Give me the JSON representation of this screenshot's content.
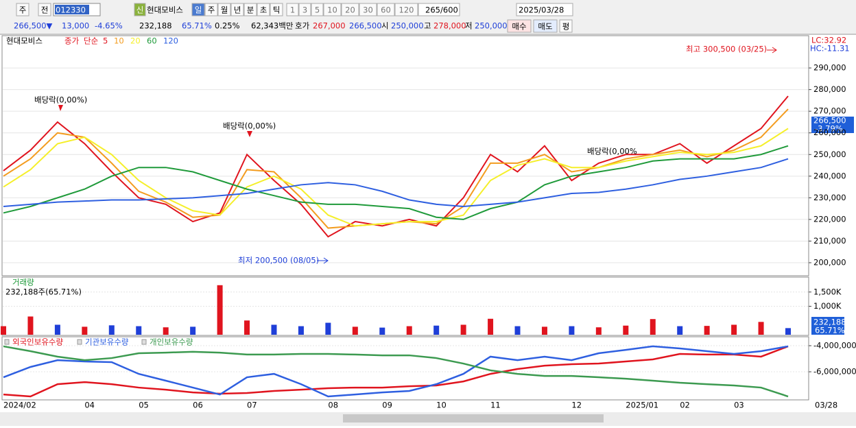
{
  "toolbar": {
    "items": [
      "주",
      "전"
    ],
    "code": "012330",
    "name": "현대모비스",
    "new_badge": "신",
    "periods": [
      "일",
      "주",
      "월",
      "년",
      "분",
      "초",
      "틱"
    ],
    "intervals": [
      "1",
      "3",
      "5",
      "10",
      "20",
      "30",
      "60",
      "120"
    ],
    "count": "265",
    "count_total": "/600",
    "date": "2025/03/28"
  },
  "info_bar": {
    "price": "266,500▼",
    "change": "13,000",
    "change_pct": "-4.65%",
    "volume": "232,188",
    "volume_ratio": "65.71%",
    "turnover": "0.25%",
    "amount": "62,343백만",
    "quote_label": "호가",
    "ask": "267,000",
    "bid": "266,500",
    "open_label": "시",
    "open": "250,000",
    "high_label": "고",
    "high": "278,000",
    "low_label": "저",
    "low": "250,000",
    "buy": "매수",
    "sell": "매도",
    "avg": "평"
  },
  "price_tag": {
    "price": "266,500",
    "change": "-3.79%",
    "lc": "LC:32.92",
    "hc": "HC:-11.31"
  },
  "legend_prefix": {
    "stock": "현대모비스",
    "field": "종가",
    "method": "단순"
  },
  "chart_data": [
    {
      "type": "line",
      "ylim": [
        194300,
        304600
      ],
      "categories": [
        "2024/02",
        null,
        null,
        "04",
        null,
        "05",
        null,
        "06",
        null,
        "07",
        null,
        null,
        "08",
        null,
        "09",
        null,
        "10",
        null,
        "11",
        null,
        null,
        "12",
        null,
        "2025/01",
        null,
        "02",
        null,
        "03",
        null,
        "03/28"
      ],
      "yticks": [
        {
          "value": 200000,
          "label": "200,000"
        },
        {
          "value": 210000,
          "label": "210,000"
        },
        {
          "value": 220000,
          "label": "220,000"
        },
        {
          "value": 230000,
          "label": "230,000"
        },
        {
          "value": 240000,
          "label": "240,000"
        },
        {
          "value": 250000,
          "label": "250,000"
        },
        {
          "value": 260000,
          "label": "260,000"
        },
        {
          "value": 270000,
          "label": "270,000"
        },
        {
          "value": 280000,
          "label": "280,000"
        },
        {
          "value": 290000,
          "label": "290,000"
        }
      ],
      "grid": true,
      "annotations": [
        "배당락(0,00%)",
        "배당락(0,00%)",
        "배당락(0,00%",
        "최고 300,500 (03/25)",
        "최저 200,500 (08/05)"
      ],
      "series": [
        {
          "name": "5",
          "color": "#e0141e",
          "values": [
            242500,
            252000,
            265000,
            255000,
            242000,
            230000,
            227000,
            219000,
            223000,
            250000,
            238000,
            227000,
            212000,
            219000,
            217000,
            220000,
            217000,
            230000,
            250000,
            242000,
            254000,
            238000,
            246000,
            250000,
            250000,
            255000,
            246000,
            254000,
            262000,
            277000
          ]
        },
        {
          "name": "10",
          "color": "#f39c1f",
          "values": [
            240000,
            248000,
            260000,
            258000,
            246000,
            233000,
            228000,
            221000,
            222000,
            243000,
            242000,
            230000,
            216000,
            217000,
            218000,
            219000,
            218000,
            226000,
            246000,
            246000,
            250000,
            242000,
            244000,
            248000,
            250000,
            252000,
            249000,
            252000,
            258000,
            271000
          ]
        },
        {
          "name": "20",
          "color": "#f5ef2a",
          "values": [
            235000,
            243000,
            255000,
            258000,
            250000,
            238000,
            230000,
            224000,
            222000,
            235000,
            240000,
            234000,
            222000,
            217000,
            218000,
            219000,
            219000,
            222000,
            238000,
            245000,
            248000,
            244000,
            244000,
            247000,
            249000,
            251000,
            250000,
            251000,
            254000,
            262000
          ]
        },
        {
          "name": "60",
          "color": "#1f9a3a",
          "values": [
            223000,
            226000,
            230000,
            234000,
            240000,
            244000,
            244000,
            242000,
            238000,
            234000,
            231000,
            228000,
            227000,
            227000,
            226000,
            225000,
            221000,
            220000,
            225000,
            228000,
            236000,
            240000,
            242000,
            244000,
            247000,
            248000,
            248000,
            248000,
            250000,
            254000
          ]
        },
        {
          "name": "120",
          "color": "#2e5fe0",
          "values": [
            226000,
            227000,
            228000,
            228500,
            229000,
            229000,
            229500,
            230000,
            231000,
            232000,
            234000,
            236000,
            237000,
            236000,
            233000,
            229000,
            227000,
            226000,
            227000,
            228000,
            230000,
            232000,
            232500,
            234000,
            236000,
            238500,
            240000,
            242000,
            244000,
            248000
          ]
        }
      ]
    },
    {
      "type": "bar",
      "title": "거래량",
      "subtitle": "232,188주(65.71%)",
      "ylim": [
        0,
        2000000
      ],
      "yticks": [
        {
          "value": 1000000,
          "label": "1,000K"
        },
        {
          "value": 1500000,
          "label": "1,500K"
        }
      ],
      "last_label": "232,188",
      "last_pct": "65.71%",
      "values": [
        300000,
        640000,
        350000,
        280000,
        330000,
        300000,
        260000,
        280000,
        1740000,
        500000,
        350000,
        300000,
        420000,
        280000,
        250000,
        300000,
        320000,
        350000,
        560000,
        300000,
        280000,
        300000,
        260000,
        320000,
        550000,
        300000,
        310000,
        350000,
        450000,
        232188
      ],
      "colors": [
        "#e0141e",
        "#e0141e",
        "#1f3fd8",
        "#e0141e",
        "#1f3fd8",
        "#1f3fd8",
        "#e0141e",
        "#1f3fd8",
        "#e0141e",
        "#e0141e",
        "#1f3fd8",
        "#1f3fd8",
        "#1f3fd8",
        "#e0141e",
        "#1f3fd8",
        "#e0141e",
        "#1f3fd8",
        "#e0141e",
        "#e0141e",
        "#1f3fd8",
        "#e0141e",
        "#1f3fd8",
        "#e0141e",
        "#e0141e",
        "#e0141e",
        "#1f3fd8",
        "#e0141e",
        "#e0141e",
        "#e0141e",
        "#1f3fd8"
      ]
    },
    {
      "type": "line",
      "ylim": [
        -8100000,
        -3370000
      ],
      "yticks": [
        {
          "value": -6000000,
          "label": "-6,000,000"
        },
        {
          "value": -4000000,
          "label": "-4,000,000"
        }
      ],
      "series": [
        {
          "name": "외국인보유수량",
          "color": "#e0141e",
          "values": [
            -7740000,
            -7890000,
            -6950000,
            -6790000,
            -6950000,
            -7210000,
            -7370000,
            -7580000,
            -7680000,
            -7630000,
            -7470000,
            -7370000,
            -7260000,
            -7210000,
            -7210000,
            -7110000,
            -7050000,
            -6740000,
            -6160000,
            -5790000,
            -5530000,
            -5420000,
            -5370000,
            -5210000,
            -5050000,
            -4630000,
            -4680000,
            -4680000,
            -4840000,
            -4050000
          ]
        },
        {
          "name": "기관보유수량",
          "color": "#2e5fe0",
          "values": [
            -6420000,
            -5630000,
            -5110000,
            -5210000,
            -5260000,
            -6160000,
            -6680000,
            -7210000,
            -7740000,
            -6420000,
            -6160000,
            -6950000,
            -7890000,
            -7740000,
            -7580000,
            -7470000,
            -6950000,
            -6160000,
            -4840000,
            -5110000,
            -4840000,
            -5110000,
            -4580000,
            -4320000,
            -4050000,
            -4210000,
            -4420000,
            -4630000,
            -4420000,
            -4050000
          ]
        },
        {
          "name": "개인보유수량",
          "color": "#3c9a50",
          "values": [
            -4050000,
            -4420000,
            -4840000,
            -5110000,
            -4950000,
            -4580000,
            -4530000,
            -4470000,
            -4530000,
            -4680000,
            -4680000,
            -4630000,
            -4630000,
            -4680000,
            -4740000,
            -4740000,
            -4950000,
            -5370000,
            -5890000,
            -6160000,
            -6320000,
            -6320000,
            -6420000,
            -6530000,
            -6680000,
            -6840000,
            -6950000,
            -7050000,
            -7210000,
            -7890000
          ]
        }
      ]
    }
  ]
}
